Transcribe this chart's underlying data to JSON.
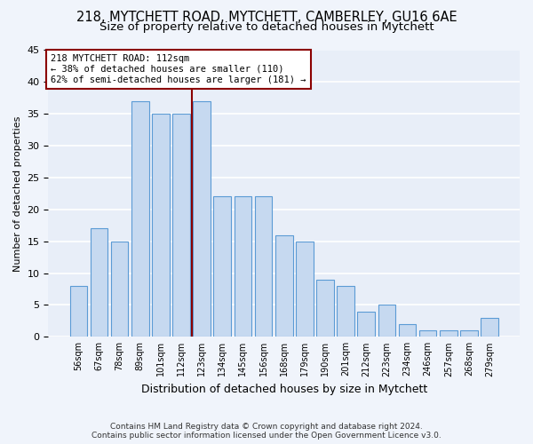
{
  "title1": "218, MYTCHETT ROAD, MYTCHETT, CAMBERLEY, GU16 6AE",
  "title2": "Size of property relative to detached houses in Mytchett",
  "xlabel": "Distribution of detached houses by size in Mytchett",
  "ylabel": "Number of detached properties",
  "categories": [
    "56sqm",
    "67sqm",
    "78sqm",
    "89sqm",
    "101sqm",
    "112sqm",
    "123sqm",
    "134sqm",
    "145sqm",
    "156sqm",
    "168sqm",
    "179sqm",
    "190sqm",
    "201sqm",
    "212sqm",
    "223sqm",
    "234sqm",
    "246sqm",
    "257sqm",
    "268sqm",
    "279sqm"
  ],
  "values": [
    8,
    17,
    15,
    37,
    35,
    35,
    37,
    22,
    22,
    22,
    16,
    15,
    9,
    8,
    4,
    5,
    2,
    1,
    1,
    1,
    3
  ],
  "bar_color": "#c6d9f0",
  "bar_edge_color": "#5b9bd5",
  "highlight_index": 5,
  "vline_index": 5,
  "vline_color": "#8b0000",
  "annotation_line1": "218 MYTCHETT ROAD: 112sqm",
  "annotation_line2": "← 38% of detached houses are smaller (110)",
  "annotation_line3": "62% of semi-detached houses are larger (181) →",
  "annotation_box_color": "#8b0000",
  "footer1": "Contains HM Land Registry data © Crown copyright and database right 2024.",
  "footer2": "Contains public sector information licensed under the Open Government Licence v3.0.",
  "ylim": [
    0,
    45
  ],
  "yticks": [
    0,
    5,
    10,
    15,
    20,
    25,
    30,
    35,
    40,
    45
  ],
  "bg_color": "#e8eef8",
  "grid_color": "#ffffff",
  "title1_fontsize": 10.5,
  "title2_fontsize": 9.5,
  "bar_width": 0.85,
  "fig_bg": "#f0f4fb"
}
